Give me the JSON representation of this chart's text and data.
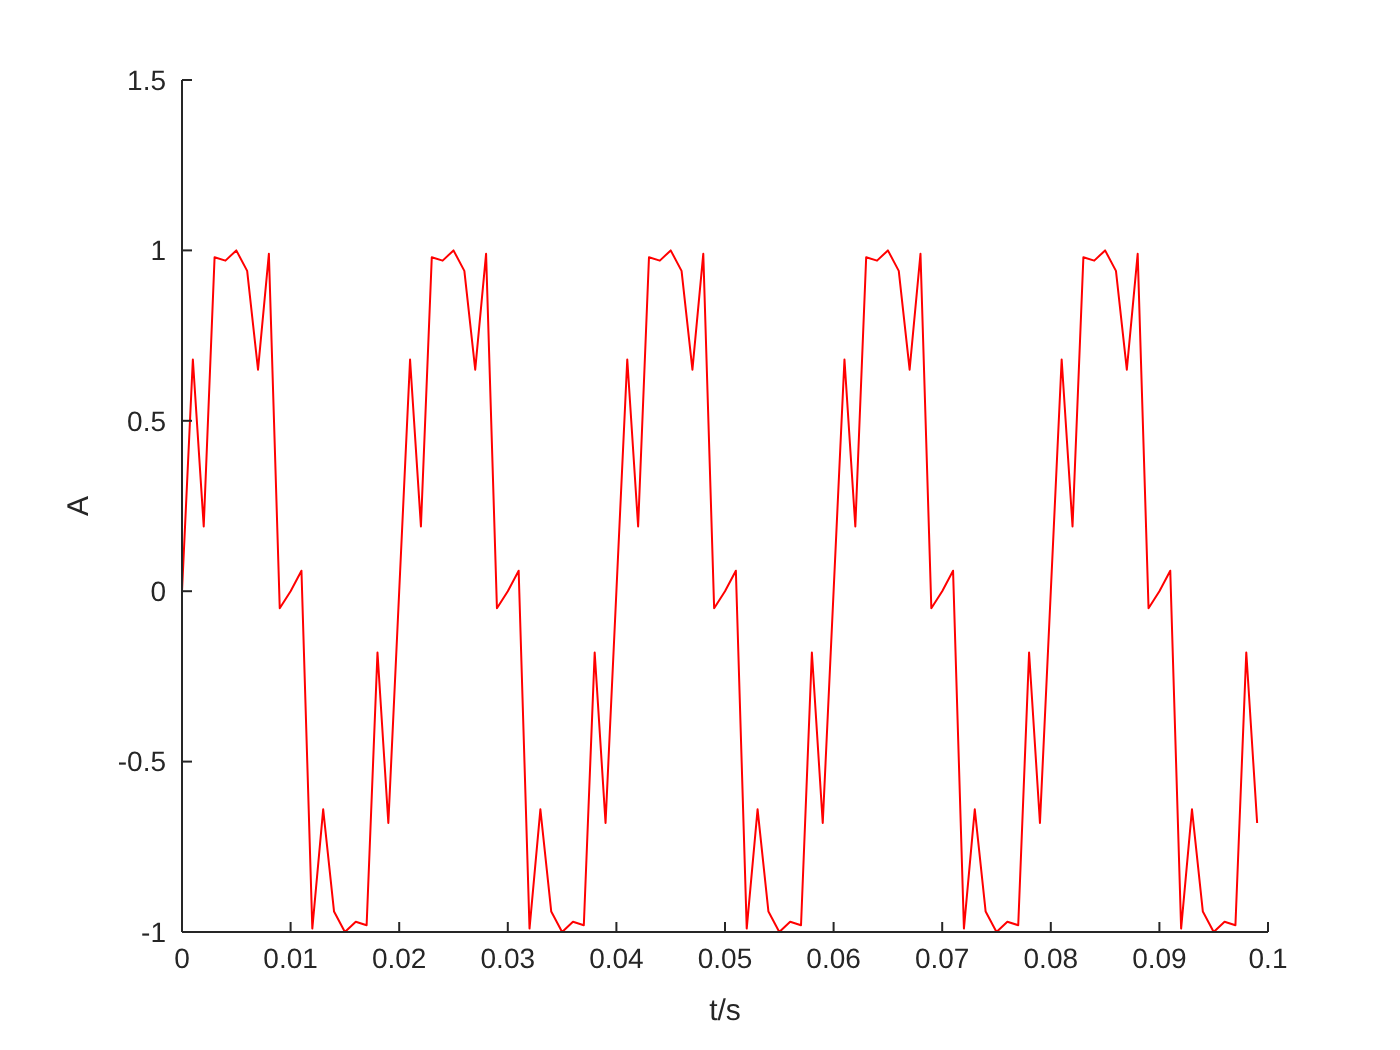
{
  "chart_data": {
    "type": "line",
    "xlabel": "t/s",
    "ylabel": "A",
    "x": [
      0,
      0.001,
      0.002,
      0.003,
      0.004,
      0.005,
      0.006,
      0.007,
      0.008,
      0.009,
      0.01,
      0.011,
      0.012,
      0.013,
      0.014,
      0.015,
      0.016,
      0.017,
      0.018,
      0.019,
      0.02,
      0.021,
      0.022,
      0.023,
      0.024,
      0.025,
      0.026,
      0.027,
      0.028,
      0.029,
      0.03,
      0.031,
      0.032,
      0.033,
      0.034,
      0.035,
      0.036,
      0.037,
      0.038,
      0.039,
      0.04,
      0.041,
      0.042,
      0.043,
      0.044,
      0.045,
      0.046,
      0.047,
      0.048,
      0.049,
      0.05,
      0.051,
      0.052,
      0.053,
      0.054,
      0.055,
      0.056,
      0.057,
      0.058,
      0.059,
      0.06,
      0.061,
      0.062,
      0.063,
      0.064,
      0.065,
      0.066,
      0.067,
      0.068,
      0.069,
      0.07,
      0.071,
      0.072,
      0.073,
      0.074,
      0.075,
      0.076,
      0.077,
      0.078,
      0.079,
      0.08,
      0.081,
      0.082,
      0.083,
      0.084,
      0.085,
      0.086,
      0.087,
      0.088,
      0.089,
      0.09,
      0.091,
      0.092,
      0.093,
      0.094,
      0.095,
      0.096,
      0.097,
      0.098,
      0.099
    ],
    "series": [
      {
        "color": "#ff0000",
        "values": [
          0,
          0.68,
          0.19,
          0.98,
          0.97,
          1.0,
          0.94,
          0.65,
          0.99,
          -0.05,
          0,
          0.06,
          -0.99,
          -0.64,
          -0.94,
          -1.0,
          -0.97,
          -0.98,
          -0.18,
          -0.68,
          0,
          0.68,
          0.19,
          0.98,
          0.97,
          1.0,
          0.94,
          0.65,
          0.99,
          -0.05,
          0,
          0.06,
          -0.99,
          -0.64,
          -0.94,
          -1.0,
          -0.97,
          -0.98,
          -0.18,
          -0.68,
          0,
          0.68,
          0.19,
          0.98,
          0.97,
          1.0,
          0.94,
          0.65,
          0.99,
          -0.05,
          0,
          0.06,
          -0.99,
          -0.64,
          -0.94,
          -1.0,
          -0.97,
          -0.98,
          -0.18,
          -0.68,
          0,
          0.68,
          0.19,
          0.98,
          0.97,
          1.0,
          0.94,
          0.65,
          0.99,
          -0.05,
          0,
          0.06,
          -0.99,
          -0.64,
          -0.94,
          -1.0,
          -0.97,
          -0.98,
          -0.18,
          -0.68,
          0,
          0.68,
          0.19,
          0.98,
          0.97,
          1.0,
          0.94,
          0.65,
          0.99,
          -0.05,
          0,
          0.06,
          -0.99,
          -0.64,
          -0.94,
          -1.0,
          -0.97,
          -0.98,
          -0.18,
          -0.68
        ]
      }
    ],
    "xlim": [
      0,
      0.1
    ],
    "xticks": [
      0,
      0.01,
      0.02,
      0.03,
      0.04,
      0.05,
      0.06,
      0.07,
      0.08,
      0.09,
      0.1
    ],
    "ylim": [
      -1,
      1.5
    ],
    "yticks": [
      -1,
      -0.5,
      0,
      0.5,
      1,
      1.5
    ],
    "grid": false
  }
}
